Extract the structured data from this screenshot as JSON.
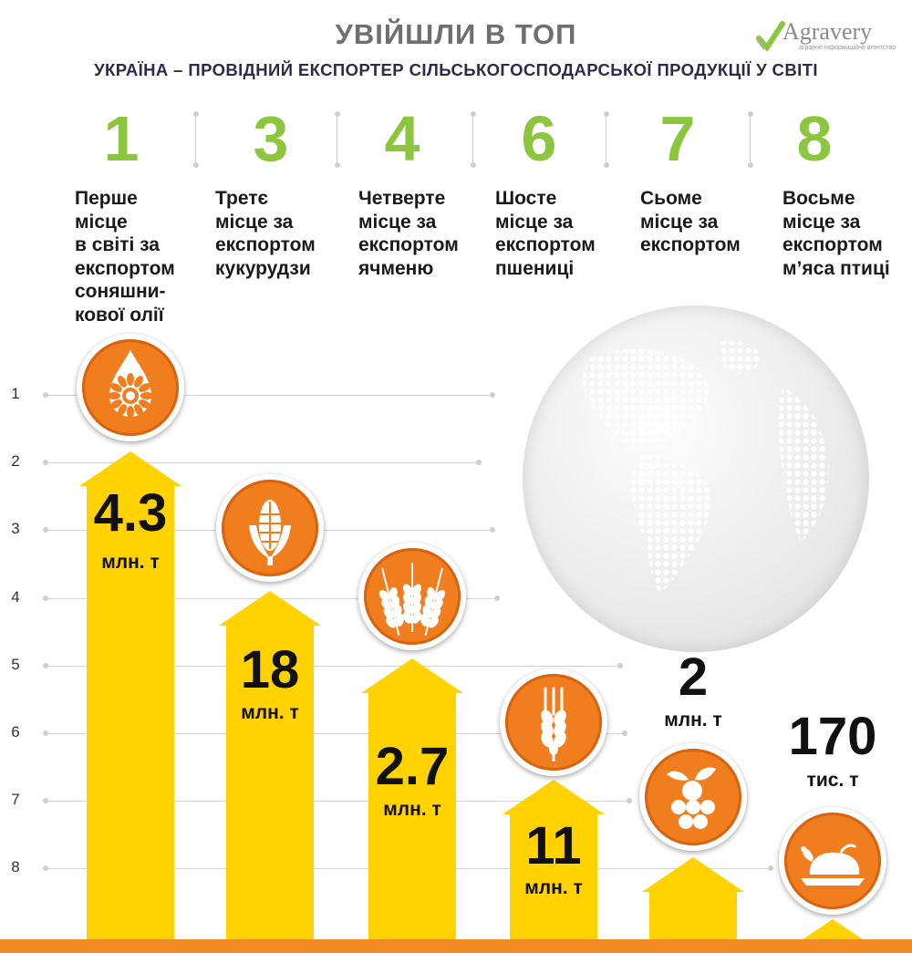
{
  "title": "УВІЙШЛИ В ТОП",
  "subtitle": "УКРАЇНА – ПРОВІДНИЙ ЕКСПОРТЕР СІЛЬСЬКОГОСПОДАРСЬКОЇ ПРОДУКЦІЇ У СВІТІ",
  "logo": {
    "name": "Agravery",
    "tagline": "аграрне інформаційне агентство"
  },
  "y_axis": [
    "1",
    "2",
    "3",
    "4",
    "5",
    "6",
    "7",
    "8"
  ],
  "items": [
    {
      "rank": "1",
      "desc": [
        "Перше",
        "місце",
        "в світі за",
        "експортом",
        "соняшни-",
        "кової олії"
      ],
      "value": "4.3",
      "unit": "млн. т",
      "icon": "sunflower-oil-drop-icon",
      "rank_value": 1
    },
    {
      "rank": "3",
      "desc": [
        "Третє",
        "місце за",
        "експортом",
        "кукурудзи"
      ],
      "value": "18",
      "unit": "млн. т",
      "icon": "corn-icon",
      "rank_value": 3
    },
    {
      "rank": "4",
      "desc": [
        "Четверте",
        "місце за",
        "експортом",
        "ячменю"
      ],
      "value": "2.7",
      "unit": "млн. т",
      "icon": "barley-icon",
      "rank_value": 4
    },
    {
      "rank": "6",
      "desc": [
        "Шосте",
        "місце за",
        "експортом",
        "пшениці"
      ],
      "value": "11",
      "unit": "млн. т",
      "icon": "wheat-icon",
      "rank_value": 6
    },
    {
      "rank": "7",
      "desc": [
        "Сьоме",
        "місце за",
        "експортом"
      ],
      "value": "2",
      "unit": "млн. т",
      "icon": "fruit-berries-icon",
      "rank_value": 7
    },
    {
      "rank": "8",
      "desc": [
        "Восьме",
        "місце за",
        "експортом",
        "м’яса птиці"
      ],
      "value": "170",
      "unit": "тис. т",
      "icon": "roast-chicken-icon",
      "rank_value": 8
    }
  ],
  "colors": {
    "green": "#8cc63f",
    "orange": "#f07d1e",
    "yellow": "#ffd200",
    "navy": "#2d2a4a",
    "gray_title": "#6f6f6f"
  }
}
